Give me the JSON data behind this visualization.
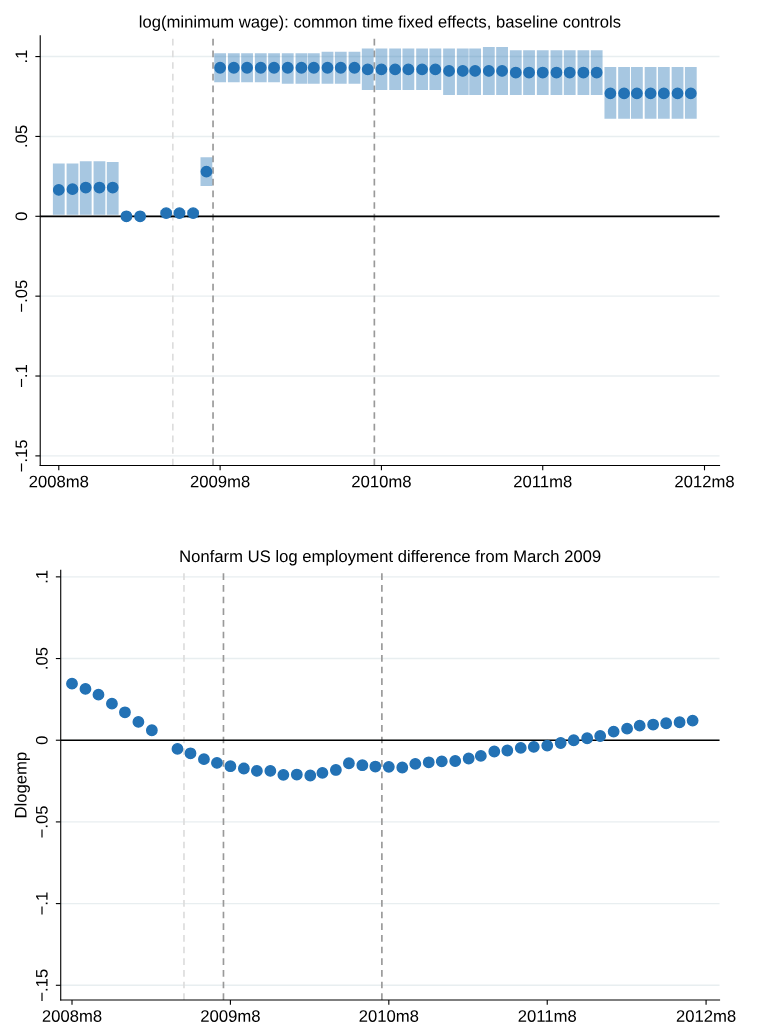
{
  "chart_data": [
    {
      "type": "scatter",
      "title": "log(minimum wage): common time fixed effects, baseline controls",
      "x": [
        "2008-08",
        "2008-09",
        "2008-10",
        "2008-11",
        "2008-12",
        "2009-01",
        "2009-02",
        "2009-03",
        "2009-04",
        "2009-05",
        "2009-06",
        "2009-07",
        "2009-08",
        "2009-09",
        "2009-10",
        "2009-11",
        "2009-12",
        "2010-01",
        "2010-02",
        "2010-03",
        "2010-04",
        "2010-05",
        "2010-06",
        "2010-07",
        "2010-08",
        "2010-09",
        "2010-10",
        "2010-11",
        "2010-12",
        "2011-01",
        "2011-02",
        "2011-03",
        "2011-04",
        "2011-05",
        "2011-06",
        "2011-07",
        "2011-08",
        "2011-09",
        "2011-10",
        "2011-11",
        "2011-12",
        "2012-01",
        "2012-02",
        "2012-03",
        "2012-04",
        "2012-05",
        "2012-06",
        "2012-07"
      ],
      "series": [
        {
          "color": "#2372b5",
          "values": [
            0.0165,
            0.017,
            0.018,
            0.018,
            0.018,
            0.0,
            0.0,
            null,
            0.002,
            0.002,
            0.002,
            0.028,
            0.093,
            0.093,
            0.093,
            0.093,
            0.093,
            0.093,
            0.093,
            0.093,
            0.093,
            0.093,
            0.093,
            0.092,
            0.092,
            0.092,
            0.092,
            0.092,
            0.092,
            0.091,
            0.091,
            0.091,
            0.091,
            0.091,
            0.09,
            0.09,
            0.09,
            0.09,
            0.09,
            0.09,
            0.09,
            0.077,
            0.077,
            0.077,
            0.077,
            0.077,
            0.077,
            0.077
          ],
          "errors": [
            [
              0.001,
              0.033
            ],
            [
              0.001,
              0.033
            ],
            [
              0.001,
              0.0345
            ],
            [
              0.001,
              0.0345
            ],
            [
              0.001,
              0.034
            ],
            null,
            null,
            null,
            [
              -0.001,
              0.004
            ],
            [
              -0.001,
              0.004
            ],
            [
              -0.001,
              0.004
            ],
            [
              0.019,
              0.037
            ],
            [
              0.084,
              0.102
            ],
            [
              0.084,
              0.102
            ],
            [
              0.084,
              0.102
            ],
            [
              0.084,
              0.102
            ],
            [
              0.084,
              0.102
            ],
            [
              0.083,
              0.102
            ],
            [
              0.083,
              0.102
            ],
            [
              0.083,
              0.102
            ],
            [
              0.083,
              0.103
            ],
            [
              0.083,
              0.103
            ],
            [
              0.083,
              0.103
            ],
            [
              0.079,
              0.105
            ],
            [
              0.079,
              0.105
            ],
            [
              0.079,
              0.105
            ],
            [
              0.079,
              0.105
            ],
            [
              0.079,
              0.105
            ],
            [
              0.079,
              0.105
            ],
            [
              0.076,
              0.105
            ],
            [
              0.076,
              0.105
            ],
            [
              0.076,
              0.105
            ],
            [
              0.076,
              0.106
            ],
            [
              0.076,
              0.106
            ],
            [
              0.076,
              0.104
            ],
            [
              0.076,
              0.104
            ],
            [
              0.076,
              0.104
            ],
            [
              0.076,
              0.104
            ],
            [
              0.076,
              0.104
            ],
            [
              0.076,
              0.104
            ],
            [
              0.076,
              0.104
            ],
            [
              0.061,
              0.0935
            ],
            [
              0.061,
              0.0935
            ],
            [
              0.061,
              0.0935
            ],
            [
              0.061,
              0.0935
            ],
            [
              0.061,
              0.0935
            ],
            [
              0.061,
              0.0935
            ],
            [
              0.061,
              0.0935
            ]
          ]
        }
      ],
      "xlim": [
        "2008-06-20",
        "2012-09-04"
      ],
      "ylim": [
        -0.156,
        0.113
      ],
      "xticks": [
        {
          "value": "2008-08",
          "label": "2008m8"
        },
        {
          "value": "2009-08",
          "label": "2009m8"
        },
        {
          "value": "2010-08",
          "label": "2010m8"
        },
        {
          "value": "2011-08",
          "label": "2011m8"
        },
        {
          "value": "2012-08",
          "label": "2012m8"
        }
      ],
      "yticks": [
        {
          "value": -0.15,
          "label": "−.15"
        },
        {
          "value": -0.1,
          "label": "−.1"
        },
        {
          "value": -0.05,
          "label": "−.05"
        },
        {
          "value": 0,
          "label": "0"
        },
        {
          "value": 0.05,
          "label": ".05"
        },
        {
          "value": 0.1,
          "label": ".1"
        }
      ],
      "ref_lines": [
        {
          "axis": "y",
          "value": 0,
          "color": "#000000",
          "line_style": "solid"
        },
        {
          "axis": "x",
          "value": "2009-04-16",
          "color": "#dddddd",
          "line_style": "dashed"
        },
        {
          "axis": "x",
          "value": "2009-07-16",
          "color": "#999999",
          "line_style": "dashed"
        },
        {
          "axis": "x",
          "value": "2010-07-16",
          "color": "#999999",
          "line_style": "dashed"
        }
      ],
      "grid": "y",
      "marker": "circle"
    },
    {
      "type": "scatter",
      "title": "Nonfarm US log employment difference from March 2009",
      "ylabel": "Dlogemp",
      "x": [
        "2008-08",
        "2008-09",
        "2008-10",
        "2008-11",
        "2008-12",
        "2009-01",
        "2009-02",
        "2009-03",
        "2009-04",
        "2009-05",
        "2009-06",
        "2009-07",
        "2009-08",
        "2009-09",
        "2009-10",
        "2009-11",
        "2009-12",
        "2010-01",
        "2010-02",
        "2010-03",
        "2010-04",
        "2010-05",
        "2010-06",
        "2010-07",
        "2010-08",
        "2010-09",
        "2010-10",
        "2010-11",
        "2010-12",
        "2011-01",
        "2011-02",
        "2011-03",
        "2011-04",
        "2011-05",
        "2011-06",
        "2011-07",
        "2011-08",
        "2011-09",
        "2011-10",
        "2011-11",
        "2011-12",
        "2012-01",
        "2012-02",
        "2012-03",
        "2012-04",
        "2012-05",
        "2012-06",
        "2012-07"
      ],
      "series": [
        {
          "color": "#2372b5",
          "values": [
            0.0346,
            0.0314,
            0.0279,
            0.0224,
            0.0171,
            0.0112,
            0.0061,
            null,
            -0.0053,
            -0.008,
            -0.0116,
            -0.0139,
            -0.0159,
            -0.0173,
            -0.0188,
            -0.0188,
            -0.0212,
            -0.021,
            -0.0216,
            -0.02,
            -0.0182,
            -0.0141,
            -0.0153,
            -0.0161,
            -0.0163,
            -0.0167,
            -0.0145,
            -0.0135,
            -0.0129,
            -0.0127,
            -0.0112,
            -0.0096,
            -0.0069,
            -0.0063,
            -0.0047,
            -0.0041,
            -0.0033,
            -0.0017,
            0.0,
            0.0012,
            0.0026,
            0.0053,
            0.0071,
            0.0089,
            0.0096,
            0.0104,
            0.011,
            0.012
          ]
        }
      ],
      "xlim": [
        "2008-07-06",
        "2012-09-01"
      ],
      "ylim": [
        -0.159,
        0.104
      ],
      "xticks": [
        {
          "value": "2008-08",
          "label": "2008m8"
        },
        {
          "value": "2009-08",
          "label": "2009m8"
        },
        {
          "value": "2010-08",
          "label": "2010m8"
        },
        {
          "value": "2011-08",
          "label": "2011m8"
        },
        {
          "value": "2012-08",
          "label": "2012m8"
        }
      ],
      "yticks": [
        {
          "value": -0.15,
          "label": "−.15"
        },
        {
          "value": -0.1,
          "label": "−.1"
        },
        {
          "value": -0.05,
          "label": "−.05"
        },
        {
          "value": 0,
          "label": "0"
        },
        {
          "value": 0.05,
          "label": ".05"
        },
        {
          "value": 0.1,
          "label": ".1"
        }
      ],
      "ref_lines": [
        {
          "axis": "y",
          "value": 0,
          "color": "#000000",
          "line_style": "solid"
        },
        {
          "axis": "x",
          "value": "2009-04-16",
          "color": "#dddddd",
          "line_style": "dashed"
        },
        {
          "axis": "x",
          "value": "2009-07-16",
          "color": "#999999",
          "line_style": "dashed"
        },
        {
          "axis": "x",
          "value": "2010-07-16",
          "color": "#999999",
          "line_style": "dashed"
        }
      ],
      "grid": "y",
      "marker": "circle"
    }
  ]
}
